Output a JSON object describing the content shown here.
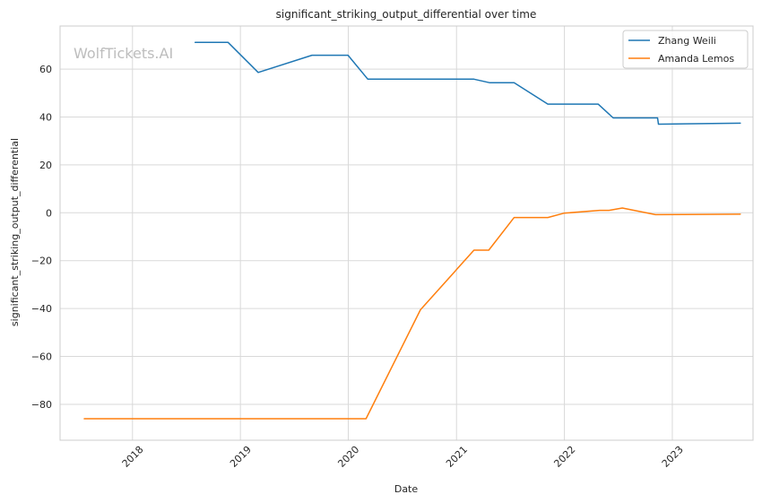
{
  "chart_data": {
    "type": "line",
    "title": "significant_striking_output_differential over time",
    "xlabel": "Date",
    "ylabel": "significant_striking_output_differential",
    "watermark": "WolfTickets.AI",
    "xlim": [
      "2017-05-01",
      "2023-10-01"
    ],
    "ylim": [
      -95,
      78
    ],
    "x_ticks": [
      "2018",
      "2019",
      "2020",
      "2021",
      "2022",
      "2023"
    ],
    "y_ticks": [
      60,
      40,
      20,
      0,
      -20,
      -40,
      -60,
      -80
    ],
    "y_tick_labels": [
      "60",
      "40",
      "20",
      "0",
      "−20",
      "−40",
      "−60",
      "−80"
    ],
    "grid": true,
    "legend_position": "top-right",
    "series": [
      {
        "name": "Zhang Weili",
        "color": "#1f77b4",
        "points": [
          [
            "2018-08-01",
            71.2
          ],
          [
            "2018-11-20",
            71.2
          ],
          [
            "2019-03-02",
            58.6
          ],
          [
            "2019-08-31",
            65.8
          ],
          [
            "2019-12-31",
            65.8
          ],
          [
            "2020-03-07",
            55.8
          ],
          [
            "2021-03-01",
            55.8
          ],
          [
            "2021-04-24",
            54.3
          ],
          [
            "2021-07-15",
            54.3
          ],
          [
            "2021-11-06",
            45.4
          ],
          [
            "2022-04-25",
            45.4
          ],
          [
            "2022-06-15",
            39.6
          ],
          [
            "2022-11-12",
            39.6
          ],
          [
            "2022-11-15",
            37.0
          ],
          [
            "2023-08-19",
            37.4
          ]
        ]
      },
      {
        "name": "Amanda Lemos",
        "color": "#ff7f0e",
        "points": [
          [
            "2017-07-22",
            -86.0
          ],
          [
            "2020-03-01",
            -86.0
          ],
          [
            "2020-09-01",
            -40.5
          ],
          [
            "2021-03-01",
            -15.6
          ],
          [
            "2021-04-20",
            -15.6
          ],
          [
            "2021-07-15",
            -2.0
          ],
          [
            "2021-11-06",
            -2.0
          ],
          [
            "2021-12-30",
            -0.2
          ],
          [
            "2022-04-30",
            1.0
          ],
          [
            "2022-06-01",
            1.0
          ],
          [
            "2022-07-16",
            2.0
          ],
          [
            "2022-11-05",
            -0.8
          ],
          [
            "2023-08-19",
            -0.6
          ]
        ]
      }
    ]
  }
}
